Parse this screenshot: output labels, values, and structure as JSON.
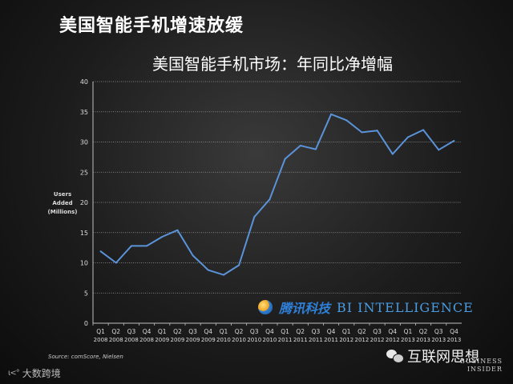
{
  "slide_title": "美国智能手机增速放缓",
  "source_text": "Source: comScore, Nielsen",
  "watermark_left": "大数跨境",
  "watermark_left_mark": "ι<°",
  "tencent_name": "腾讯科技",
  "bi_intelligence": "BI INTELLIGENCE",
  "wechat_account": "互联网思想",
  "bi_brand_line1": "BUSINESS",
  "bi_brand_line2": "INSIDER",
  "colors": {
    "line": "#5b93d9",
    "axis": "#bfbfbf",
    "grid": "#9a9a9a"
  },
  "chart_data": {
    "type": "line",
    "title": "美国智能手机市场：年同比净增幅",
    "ylabel_lines": [
      "Users",
      "Added",
      "(Millions)"
    ],
    "ylim": [
      0,
      40
    ],
    "yticks": [
      0,
      5,
      10,
      15,
      20,
      25,
      30,
      35,
      40
    ],
    "grid": true,
    "categories": [
      {
        "q": "Q1",
        "y": "2008"
      },
      {
        "q": "Q2",
        "y": "2008"
      },
      {
        "q": "Q3",
        "y": "2008"
      },
      {
        "q": "Q4",
        "y": "2008"
      },
      {
        "q": "Q1",
        "y": "2009"
      },
      {
        "q": "Q2",
        "y": "2009"
      },
      {
        "q": "Q3",
        "y": "2009"
      },
      {
        "q": "Q4",
        "y": "2009"
      },
      {
        "q": "Q1",
        "y": "2010"
      },
      {
        "q": "Q2",
        "y": "2010"
      },
      {
        "q": "Q3",
        "y": "2010"
      },
      {
        "q": "Q4",
        "y": "2010"
      },
      {
        "q": "Q1",
        "y": "2011"
      },
      {
        "q": "Q2",
        "y": "2011"
      },
      {
        "q": "Q3",
        "y": "2011"
      },
      {
        "q": "Q4",
        "y": "2011"
      },
      {
        "q": "Q1",
        "y": "2012"
      },
      {
        "q": "Q2",
        "y": "2012"
      },
      {
        "q": "Q3",
        "y": "2012"
      },
      {
        "q": "Q4",
        "y": "2012"
      },
      {
        "q": "Q1",
        "y": "2013"
      },
      {
        "q": "Q2",
        "y": "2013"
      },
      {
        "q": "Q3",
        "y": "2013"
      },
      {
        "q": "Q4",
        "y": "2013"
      }
    ],
    "values": [
      11.9,
      10.0,
      12.8,
      12.8,
      14.3,
      15.4,
      11.2,
      8.8,
      8.0,
      9.6,
      17.6,
      20.5,
      27.2,
      29.4,
      28.8,
      34.6,
      33.6,
      31.6,
      31.9,
      28.0,
      30.8,
      32.0,
      28.7,
      30.2
    ]
  }
}
